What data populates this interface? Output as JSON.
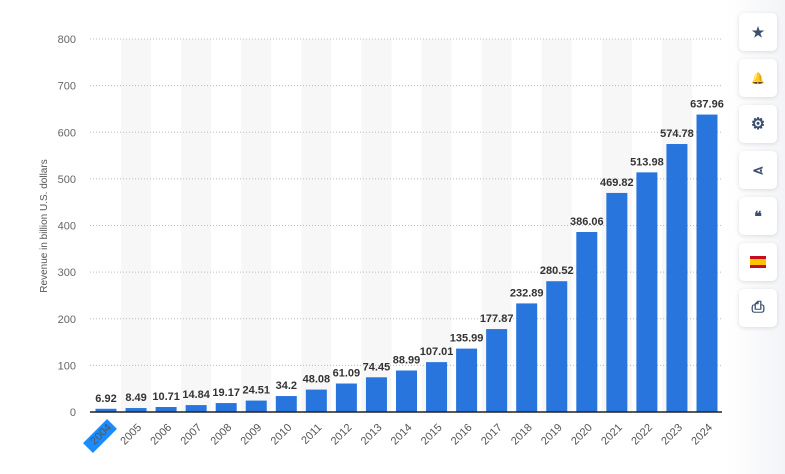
{
  "chart_data": {
    "type": "bar",
    "categories": [
      "2004",
      "2005",
      "2006",
      "2007",
      "2008",
      "2009",
      "2010",
      "2011",
      "2012",
      "2013",
      "2014",
      "2015",
      "2016",
      "2017",
      "2018",
      "2019",
      "2020",
      "2021",
      "2022",
      "2023",
      "2024"
    ],
    "values": [
      6.92,
      8.49,
      10.71,
      14.84,
      19.17,
      24.51,
      34.2,
      48.08,
      61.09,
      74.45,
      88.99,
      107.01,
      135.99,
      177.87,
      232.89,
      280.52,
      386.06,
      469.82,
      513.98,
      574.78,
      637.96
    ],
    "labels": [
      "6.92",
      "8.49",
      "10.71",
      "14.84",
      "19.17",
      "24.51",
      "34.2",
      "48.08",
      "61.09",
      "74.45",
      "88.99",
      "107.01",
      "135.99",
      "177.87",
      "232.89",
      "280.52",
      "386.06",
      "469.82",
      "513.98",
      "574.78",
      "637.96"
    ],
    "ylabel": "Revenue in billion U.S. dollars",
    "ylim": [
      0,
      800
    ],
    "yticks": [
      "0",
      "100",
      "200",
      "300",
      "400",
      "500",
      "600",
      "700",
      "800"
    ],
    "grid": true,
    "bar_color": "#2876dd",
    "highlighted_category": "2004"
  },
  "toolbar": {
    "icons": [
      "star-icon",
      "bell-icon",
      "gear-icon",
      "share-icon",
      "quote-icon",
      "spain-flag-icon",
      "print-icon"
    ],
    "glyphs": [
      "★",
      "🔔",
      "⚙",
      "⋖",
      "❝",
      "",
      "⎙"
    ]
  }
}
